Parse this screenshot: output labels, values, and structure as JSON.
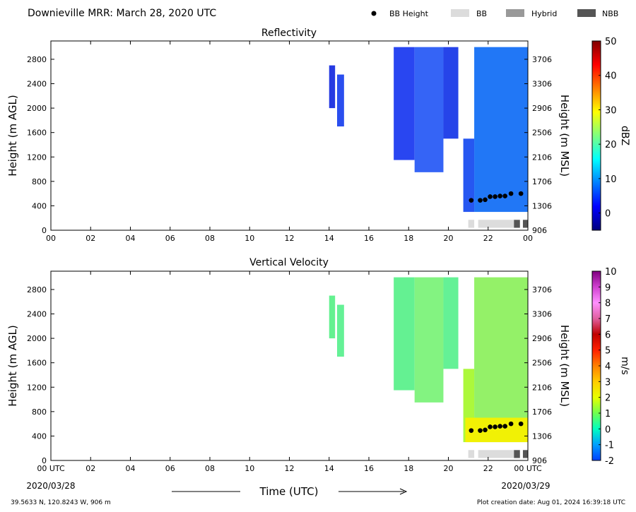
{
  "header": {
    "title": "Downieville MRR:  March 28, 2020 UTC",
    "legend": [
      {
        "label": "BB Height",
        "kind": "dot",
        "color": "#000000"
      },
      {
        "label": "BB",
        "kind": "swatch",
        "color": "#dcdcdc"
      },
      {
        "label": "Hybrid",
        "kind": "swatch",
        "color": "#999999"
      },
      {
        "label": "NBB",
        "kind": "swatch",
        "color": "#555555"
      }
    ]
  },
  "footer": {
    "location": "39.5633 N, 120.8243 W, 906 m",
    "creation": "Plot creation date: Aug 01, 2024 16:39:18 UTC",
    "xlabel": "Time (UTC)",
    "start_date": "2020/03/28",
    "end_date": "2020/03/29"
  },
  "chart_data": [
    {
      "type": "heatmap",
      "title": "Reflectivity",
      "ylabel": "Height (m AGL)",
      "ylabel_right": "Height (m MSL)",
      "xlim": [
        0,
        24
      ],
      "ylim": [
        0,
        3100
      ],
      "x_ticks": [
        "00",
        "02",
        "04",
        "06",
        "08",
        "10",
        "12",
        "14",
        "16",
        "18",
        "20",
        "22",
        "00"
      ],
      "x_first_label": "00",
      "x_last_label": "00",
      "y_ticks": [
        0,
        400,
        800,
        1200,
        1600,
        2000,
        2400,
        2800
      ],
      "y_right_ticks": [
        "906",
        "1306",
        "1706",
        "2106",
        "2506",
        "2906",
        "3306",
        "3706"
      ],
      "colorbar": {
        "label": "dBZ",
        "min": -5,
        "max": 50,
        "ticks": [
          0,
          10,
          20,
          30,
          40,
          50
        ],
        "colors": [
          "#00007f",
          "#0000ff",
          "#007fff",
          "#00ffff",
          "#7fff7f",
          "#ffff00",
          "#ff7f00",
          "#ff0000",
          "#7f0000"
        ]
      },
      "echo_regions": [
        {
          "t_start": 14.0,
          "t_end": 14.3,
          "h_bottom": 2000,
          "h_top": 2700,
          "color": "#1a2fe0"
        },
        {
          "t_start": 14.4,
          "t_end": 14.75,
          "h_bottom": 1700,
          "h_top": 2550,
          "color": "#1f44ee"
        },
        {
          "t_start": 17.25,
          "t_end": 18.3,
          "h_bottom": 1150,
          "h_top": 3000,
          "color": "#1e3cf0"
        },
        {
          "t_start": 18.3,
          "t_end": 19.75,
          "h_bottom": 950,
          "h_top": 3000,
          "color": "#2a5cf5"
        },
        {
          "t_start": 19.75,
          "t_end": 20.5,
          "h_bottom": 1500,
          "h_top": 3000,
          "color": "#1a3ae8"
        },
        {
          "t_start": 20.75,
          "t_end": 21.3,
          "h_bottom": 300,
          "h_top": 1500,
          "color": "#1a4ef0"
        },
        {
          "t_start": 21.3,
          "t_end": 24.0,
          "h_bottom": 300,
          "h_top": 3000,
          "color": "#1570f5"
        }
      ],
      "bb_height_points": [
        [
          21.15,
          490
        ],
        [
          21.6,
          490
        ],
        [
          21.85,
          500
        ],
        [
          22.1,
          550
        ],
        [
          22.35,
          550
        ],
        [
          22.6,
          560
        ],
        [
          22.85,
          560
        ],
        [
          23.15,
          600
        ],
        [
          23.65,
          600
        ]
      ],
      "bb_bar": [
        {
          "t_start": 21.0,
          "t_end": 21.3,
          "type": "BB"
        },
        {
          "t_start": 21.5,
          "t_end": 23.3,
          "type": "BB"
        },
        {
          "t_start": 23.3,
          "t_end": 23.6,
          "type": "NBB"
        },
        {
          "t_start": 23.75,
          "t_end": 24.0,
          "type": "NBB"
        }
      ]
    },
    {
      "type": "heatmap",
      "title": "Vertical Velocity",
      "ylabel": "Height (m AGL)",
      "ylabel_right": "Height (m MSL)",
      "xlim": [
        0,
        24
      ],
      "ylim": [
        0,
        3100
      ],
      "x_ticks": [
        "00",
        "02",
        "04",
        "06",
        "08",
        "10",
        "12",
        "14",
        "16",
        "18",
        "20",
        "22",
        "00"
      ],
      "x_first_label": "00 UTC",
      "x_last_label": "00 UTC",
      "y_ticks": [
        0,
        400,
        800,
        1200,
        1600,
        2000,
        2400,
        2800
      ],
      "y_right_ticks": [
        "906",
        "1306",
        "1706",
        "2106",
        "2506",
        "2906",
        "3306",
        "3706"
      ],
      "colorbar": {
        "label": "m/s",
        "min": -2,
        "max": 10,
        "ticks": [
          -2,
          -1,
          0,
          1,
          2,
          3,
          4,
          5,
          6,
          7,
          8,
          9,
          10
        ],
        "colors": [
          "#0040ff",
          "#00a0ff",
          "#00ffc0",
          "#70ff50",
          "#e8ff00",
          "#ffcc00",
          "#ff8000",
          "#ff2000",
          "#c00000",
          "#e060a0",
          "#ff90ff",
          "#d040d0",
          "#800080"
        ]
      },
      "echo_regions": [
        {
          "t_start": 14.0,
          "t_end": 14.3,
          "h_bottom": 2000,
          "h_top": 2700,
          "color": "#5cf08a"
        },
        {
          "t_start": 14.4,
          "t_end": 14.75,
          "h_bottom": 1700,
          "h_top": 2550,
          "color": "#5cf090"
        },
        {
          "t_start": 17.25,
          "t_end": 18.3,
          "h_bottom": 1150,
          "h_top": 3000,
          "color": "#5cf08c"
        },
        {
          "t_start": 18.3,
          "t_end": 19.75,
          "h_bottom": 950,
          "h_top": 3000,
          "color": "#7cf27a"
        },
        {
          "t_start": 19.75,
          "t_end": 20.5,
          "h_bottom": 1500,
          "h_top": 3000,
          "color": "#5cf090"
        },
        {
          "t_start": 20.75,
          "t_end": 21.3,
          "h_bottom": 300,
          "h_top": 1500,
          "color": "#a8f830"
        },
        {
          "t_start": 21.3,
          "t_end": 24.0,
          "h_bottom": 300,
          "h_top": 3000,
          "color": "#8ef060"
        },
        {
          "t_start": 20.85,
          "t_end": 24.0,
          "h_bottom": 300,
          "h_top": 700,
          "color": "#f5f000"
        }
      ],
      "bb_height_points": [
        [
          21.15,
          490
        ],
        [
          21.6,
          490
        ],
        [
          21.85,
          500
        ],
        [
          22.1,
          550
        ],
        [
          22.35,
          550
        ],
        [
          22.6,
          560
        ],
        [
          22.85,
          560
        ],
        [
          23.15,
          600
        ],
        [
          23.65,
          600
        ]
      ],
      "bb_bar": [
        {
          "t_start": 21.0,
          "t_end": 21.3,
          "type": "BB"
        },
        {
          "t_start": 21.5,
          "t_end": 23.3,
          "type": "BB"
        },
        {
          "t_start": 23.3,
          "t_end": 23.6,
          "type": "NBB"
        },
        {
          "t_start": 23.75,
          "t_end": 24.0,
          "type": "NBB"
        }
      ]
    }
  ]
}
